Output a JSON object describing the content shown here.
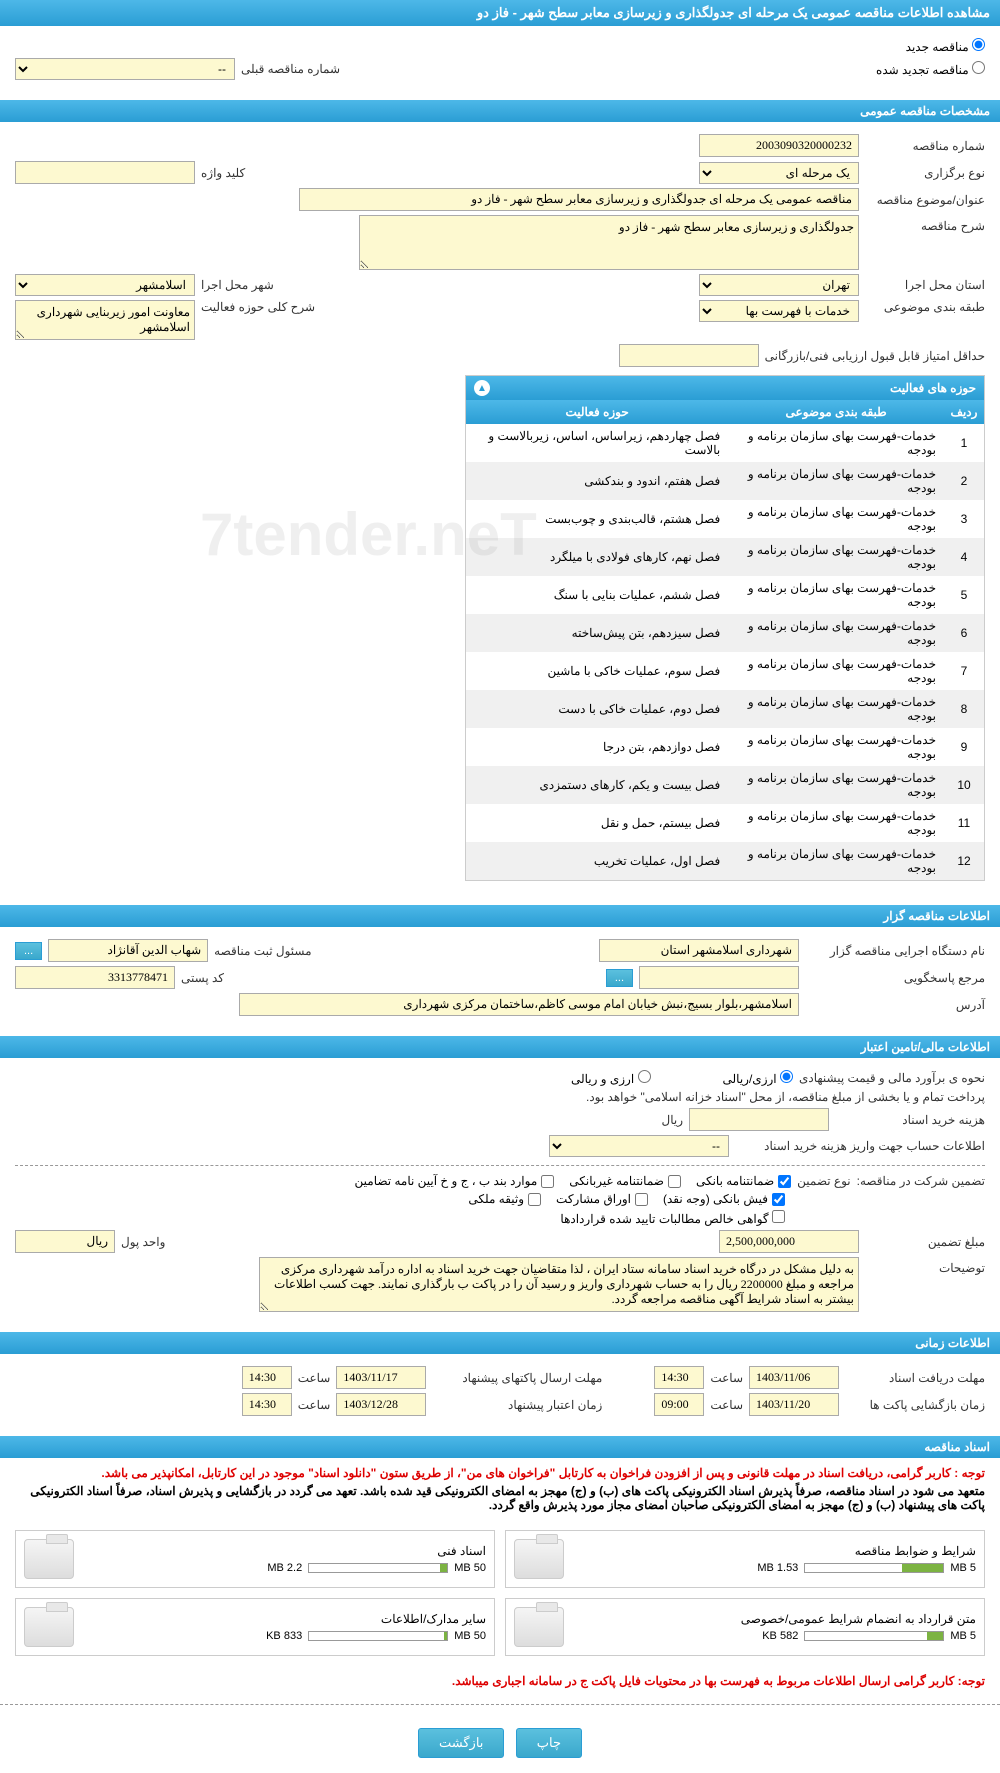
{
  "header": {
    "title": "مشاهده اطلاعات مناقصه عمومی یک مرحله ای جدولگذاری و زیرسازی معابر سطح شهر - فاز دو"
  },
  "tender_type": {
    "new_label": "مناقصه جدید",
    "renew_label": "مناقصه تجدید شده",
    "prev_number_label": "شماره مناقصه قبلی",
    "prev_number_placeholder": "--"
  },
  "general": {
    "section_title": "مشخصات مناقصه عمومی",
    "number_label": "شماره مناقصه",
    "number_value": "2003090320000232",
    "holding_type_label": "نوع برگزاری",
    "holding_type_value": "یک مرحله ای",
    "keyword_label": "کلید واژه",
    "keyword_value": "",
    "title_label": "عنوان/موضوع مناقصه",
    "title_value": "مناقصه عمومی یک مرحله ای جدولگذاری و زیرسازی معابر سطح شهر - فاز دو",
    "desc_label": "شرح مناقصه",
    "desc_value": "جدولگذاری و زیرسازی معابر سطح شهر - فاز دو",
    "province_label": "استان محل اجرا",
    "province_value": "تهران",
    "city_label": "شهر محل اجرا",
    "city_value": "اسلامشهر",
    "category_label": "طبقه بندی موضوعی",
    "category_value": "خدمات با فهرست بها",
    "activity_scope_label": "شرح کلی حوزه فعالیت",
    "activity_scope_value": "معاونت امور زیربنایی شهرداری اسلامشهر",
    "min_score_label": "حداقل امتیاز قابل قبول ارزیابی فنی/بازرگانی",
    "min_score_value": ""
  },
  "activities": {
    "panel_title": "حوزه های فعالیت",
    "col_row": "ردیف",
    "col_category": "طبقه بندی موضوعی",
    "col_scope": "حوزه فعالیت",
    "rows": [
      {
        "n": "1",
        "cat": "خدمات-فهرست بهای سازمان برنامه و بودجه",
        "scope": "فصل چهاردهم، زیراساس، اساس، زیربالاست و بالاست"
      },
      {
        "n": "2",
        "cat": "خدمات-فهرست بهای سازمان برنامه و بودجه",
        "scope": "فصل هفتم، اندود و بندکشی"
      },
      {
        "n": "3",
        "cat": "خدمات-فهرست بهای سازمان برنامه و بودجه",
        "scope": "فصل هشتم، قالب‌بندی و چوب‌بست"
      },
      {
        "n": "4",
        "cat": "خدمات-فهرست بهای سازمان برنامه و بودجه",
        "scope": "فصل نهم، کارهای فولادی با میلگرد"
      },
      {
        "n": "5",
        "cat": "خدمات-فهرست بهای سازمان برنامه و بودجه",
        "scope": "فصل ششم، عملیات بنایی با سنگ"
      },
      {
        "n": "6",
        "cat": "خدمات-فهرست بهای سازمان برنامه و بودجه",
        "scope": "فصل سیزدهم، بتن پیش‌ساخته"
      },
      {
        "n": "7",
        "cat": "خدمات-فهرست بهای سازمان برنامه و بودجه",
        "scope": "فصل سوم، عملیات خاکی با ماشین"
      },
      {
        "n": "8",
        "cat": "خدمات-فهرست بهای سازمان برنامه و بودجه",
        "scope": "فصل دوم، عملیات خاکی با دست"
      },
      {
        "n": "9",
        "cat": "خدمات-فهرست بهای سازمان برنامه و بودجه",
        "scope": "فصل دوازدهم، بتن درجا"
      },
      {
        "n": "10",
        "cat": "خدمات-فهرست بهای سازمان برنامه و بودجه",
        "scope": "فصل بیست و یکم، کارهای دستمزدی"
      },
      {
        "n": "11",
        "cat": "خدمات-فهرست بهای سازمان برنامه و بودجه",
        "scope": "فصل بیستم، حمل و نقل"
      },
      {
        "n": "12",
        "cat": "خدمات-فهرست بهای سازمان برنامه و بودجه",
        "scope": "فصل اول، عملیات تخریب"
      }
    ]
  },
  "organizer": {
    "section_title": "اطلاعات مناقصه گزار",
    "org_label": "نام دستگاه اجرایی مناقصه گزار",
    "org_value": "شهرداری اسلامشهر استان",
    "registrar_label": "مسئول ثبت مناقصه",
    "registrar_value": "شهاب الدین آقانژاد",
    "contact_label": "مرجع پاسخگویی",
    "contact_value": "",
    "postal_label": "کد پستی",
    "postal_value": "3313778471",
    "address_label": "آدرس",
    "address_value": "اسلامشهر،بلوار بسیج،نبش خیابان امام موسی کاظم،ساختمان مرکزی شهرداری"
  },
  "finance": {
    "section_title": "اطلاعات مالی/تامین اعتبار",
    "estimate_label": "نحوه ی برآورد مالی و قیمت پیشنهادی",
    "opt_currency": "ارزی/ریالی",
    "opt_both": "ارزی و ریالی",
    "pay_note": "پرداخت تمام و یا بخشی از مبلغ مناقصه، از محل \"اسناد خزانه اسلامی\" خواهد بود.",
    "doc_fee_label": "هزینه خرید اسناد",
    "doc_fee_value": "",
    "doc_fee_unit": "ریال",
    "account_label": "اطلاعات حساب جهت واریز هزینه خرید اسناد",
    "account_placeholder": "--",
    "guarantee_label": "تضمین شرکت در مناقصه:",
    "guarantee_type_label": "نوع تضمین",
    "chk_bank": "ضمانتنامه بانکی",
    "chk_nonbank": "ضمانتنامه غیربانکی",
    "chk_annex": "موارد بند ب ، ج و خ آیین نامه تضامین",
    "chk_fish": "فیش بانکی (وجه نقد)",
    "chk_bonds": "اوراق مشارکت",
    "chk_property": "وثیقه ملکی",
    "chk_receivables": "گواهی خالص مطالبات تایید شده قراردادها",
    "amount_label": "مبلغ تضمین",
    "amount_value": "2,500,000,000",
    "unit_label": "واحد پول",
    "unit_value": "ریال",
    "notes_label": "توضیحات",
    "notes_value": "به دلیل مشکل در درگاه خرید اسناد سامانه ستاد ایران ، لذا متقاضیان جهت خرید اسناد به اداره درآمد شهرداری مرکزی مراجعه و مبلغ 2200000 ریال را به حساب شهرداری واریز و رسید آن را در پاکت ب بارگذاری نمایند. جهت کسب اطلاعات بیشتر به اسناد شرایط آگهی مناقصه مراجعه گردد."
  },
  "timing": {
    "section_title": "اطلاعات زمانی",
    "receive_deadline_label": "مهلت دریافت اسناد",
    "receive_date": "1403/11/06",
    "receive_time": "14:30",
    "submit_deadline_label": "مهلت ارسال پاکتهای پیشنهاد",
    "submit_date": "1403/11/17",
    "submit_time": "14:30",
    "open_label": "زمان بازگشایی پاکت ها",
    "open_date": "1403/11/20",
    "open_time": "09:00",
    "validity_label": "زمان اعتبار پیشنهاد",
    "validity_date": "1403/12/28",
    "validity_time": "14:30",
    "time_label": "ساعت"
  },
  "documents": {
    "section_title": "اسناد مناقصه",
    "note1": "توجه : کاربر گرامی، دریافت اسناد در مهلت قانونی و پس از افزودن فراخوان به کارتابل \"فراخوان های من\"، از طریق ستون \"دانلود اسناد\" موجود در این کارتابل، امکانپذیر می باشد.",
    "note2": "متعهد می شود در اسناد مناقصه، صرفاً پذیرش اسناد الکترونیکی پاکت های (ب) و (ج) مهجز به امضای الکترونیکی قید شده باشد. تعهد می گردد در بازگشایی و پذیرش اسناد، صرفاً اسناد الکترونیکی پاکت های پیشنهاد (ب) و (ج) مهجز به امضای الکترونیکی صاحبان امضای مجاز مورد پذیرش واقع گردد.",
    "files": [
      {
        "title": "شرایط و ضوابط مناقصه",
        "used": "1.53 MB",
        "total": "5 MB",
        "pct": 30
      },
      {
        "title": "اسناد فنی",
        "used": "2.2 MB",
        "total": "50 MB",
        "pct": 5
      },
      {
        "title": "متن قرارداد به انضمام شرایط عمومی/خصوصی",
        "used": "582 KB",
        "total": "5 MB",
        "pct": 12
      },
      {
        "title": "سایر مدارک/اطلاعات",
        "used": "833 KB",
        "total": "50 MB",
        "pct": 2
      }
    ],
    "footer_note": "توجه: کاربر گرامی ارسال اطلاعات مربوط به فهرست بها در محتویات فایل پاکت ج در سامانه اجباری میباشد."
  },
  "buttons": {
    "print": "چاپ",
    "back": "بازگشت"
  },
  "watermark": "7tender.neT",
  "colors": {
    "header_bg": "#3aa8cc",
    "yellow_bg": "#fdf9d0",
    "red_text": "#dd0000",
    "green_bar": "#7cb342"
  }
}
